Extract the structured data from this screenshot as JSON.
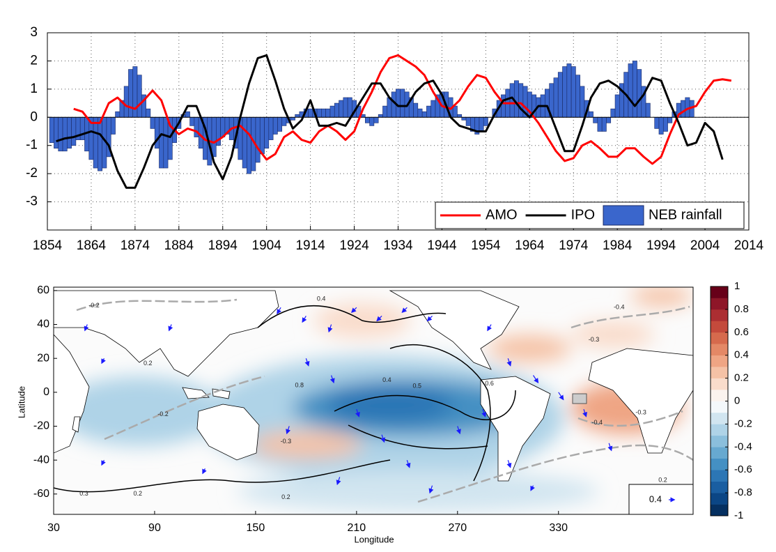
{
  "chart_data": [
    {
      "type": "line",
      "xlim": [
        1854,
        2014
      ],
      "ylim": [
        -4,
        3
      ],
      "xticks": [
        1854,
        1864,
        1874,
        1884,
        1894,
        1904,
        1914,
        1924,
        1934,
        1944,
        1954,
        1964,
        1974,
        1984,
        1994,
        2004,
        2014
      ],
      "yticks": [
        -3,
        -2,
        -1,
        0,
        1,
        2,
        3
      ],
      "grid": true,
      "legend": "lower right",
      "series": [
        {
          "name": "AMO",
          "color": "#ff0000",
          "mark": "line",
          "x": [
            1860,
            1862,
            1864,
            1866,
            1868,
            1870,
            1872,
            1874,
            1876,
            1878,
            1880,
            1882,
            1884,
            1886,
            1888,
            1890,
            1892,
            1894,
            1896,
            1898,
            1900,
            1902,
            1904,
            1906,
            1908,
            1910,
            1912,
            1914,
            1916,
            1918,
            1920,
            1922,
            1924,
            1926,
            1928,
            1930,
            1932,
            1934,
            1936,
            1938,
            1940,
            1942,
            1944,
            1946,
            1948,
            1950,
            1952,
            1954,
            1956,
            1958,
            1960,
            1962,
            1964,
            1966,
            1968,
            1970,
            1972,
            1974,
            1976,
            1978,
            1980,
            1982,
            1984,
            1986,
            1988,
            1990,
            1992,
            1994,
            1996,
            1998,
            2000,
            2002,
            2004,
            2006,
            2008,
            2010
          ],
          "values": [
            0.3,
            0.2,
            -0.2,
            -0.2,
            0.5,
            0.7,
            0.4,
            0.3,
            0.6,
            0.95,
            0.6,
            -0.3,
            -0.6,
            -0.4,
            -0.5,
            -0.8,
            -0.9,
            -0.7,
            -0.4,
            -0.3,
            -0.6,
            -1.1,
            -1.5,
            -1.3,
            -0.7,
            -0.5,
            -0.8,
            -0.9,
            -0.5,
            -0.3,
            -0.5,
            -0.8,
            -0.5,
            0.3,
            0.9,
            1.6,
            2.1,
            2.2,
            2.0,
            1.8,
            1.5,
            0.9,
            0.4,
            0.3,
            0.6,
            1.1,
            1.5,
            1.4,
            0.9,
            0.5,
            0.5,
            0.5,
            0.2,
            -0.2,
            -0.7,
            -1.2,
            -1.55,
            -1.45,
            -1.0,
            -0.85,
            -1.1,
            -1.4,
            -1.4,
            -1.1,
            -1.1,
            -1.4,
            -1.65,
            -1.4,
            -0.6,
            0.1,
            0.3,
            0.4,
            0.9,
            1.3,
            1.35,
            1.3
          ]
        },
        {
          "name": "IPO",
          "color": "#000000",
          "mark": "line",
          "x": [
            1856,
            1858,
            1860,
            1862,
            1864,
            1866,
            1868,
            1870,
            1872,
            1874,
            1876,
            1878,
            1880,
            1882,
            1884,
            1886,
            1888,
            1890,
            1892,
            1894,
            1896,
            1898,
            1900,
            1902,
            1904,
            1906,
            1908,
            1910,
            1912,
            1914,
            1916,
            1918,
            1920,
            1922,
            1924,
            1926,
            1928,
            1930,
            1932,
            1934,
            1936,
            1938,
            1940,
            1942,
            1944,
            1946,
            1948,
            1950,
            1952,
            1954,
            1956,
            1958,
            1960,
            1962,
            1964,
            1966,
            1968,
            1970,
            1972,
            1974,
            1976,
            1978,
            1980,
            1982,
            1984,
            1986,
            1988,
            1990,
            1992,
            1994,
            1996,
            1998,
            2000,
            2002,
            2004,
            2006,
            2008
          ],
          "values": [
            -0.85,
            -0.75,
            -0.7,
            -0.6,
            -0.5,
            -0.6,
            -1.0,
            -1.9,
            -2.5,
            -2.5,
            -1.8,
            -1.0,
            -0.6,
            -0.7,
            -0.2,
            0.4,
            0.4,
            -0.4,
            -1.6,
            -2.2,
            -1.4,
            0.0,
            1.2,
            2.1,
            2.2,
            1.3,
            0.3,
            -0.4,
            -0.1,
            0.6,
            -0.3,
            -0.3,
            -0.2,
            -0.3,
            0.2,
            0.7,
            1.2,
            1.2,
            0.7,
            0.4,
            0.4,
            0.9,
            1.2,
            1.3,
            0.8,
            0.0,
            -0.3,
            -0.4,
            -0.5,
            -0.5,
            0.1,
            0.6,
            0.7,
            0.3,
            0.0,
            0.4,
            0.4,
            -0.4,
            -1.2,
            -1.2,
            -0.3,
            0.7,
            1.2,
            1.3,
            1.1,
            0.8,
            0.4,
            0.8,
            1.4,
            1.3,
            0.5,
            -0.2,
            -1.0,
            -0.9,
            -0.2,
            -0.5,
            -1.5
          ]
        },
        {
          "name": "NEB rainfall",
          "color": "#3a66cc",
          "mark": "bar",
          "x": [
            1855,
            1856,
            1857,
            1858,
            1859,
            1860,
            1861,
            1862,
            1863,
            1864,
            1865,
            1866,
            1867,
            1868,
            1869,
            1870,
            1871,
            1872,
            1873,
            1874,
            1875,
            1876,
            1877,
            1878,
            1879,
            1880,
            1881,
            1882,
            1883,
            1884,
            1885,
            1886,
            1887,
            1888,
            1889,
            1890,
            1891,
            1892,
            1893,
            1894,
            1895,
            1896,
            1897,
            1898,
            1899,
            1900,
            1901,
            1902,
            1903,
            1904,
            1905,
            1906,
            1907,
            1908,
            1909,
            1910,
            1911,
            1912,
            1913,
            1914,
            1915,
            1916,
            1917,
            1918,
            1919,
            1920,
            1921,
            1922,
            1923,
            1924,
            1925,
            1926,
            1927,
            1928,
            1929,
            1930,
            1931,
            1932,
            1933,
            1934,
            1935,
            1936,
            1937,
            1938,
            1939,
            1940,
            1941,
            1942,
            1943,
            1944,
            1945,
            1946,
            1947,
            1948,
            1949,
            1950,
            1951,
            1952,
            1953,
            1954,
            1955,
            1956,
            1957,
            1958,
            1959,
            1960,
            1961,
            1962,
            1963,
            1964,
            1965,
            1966,
            1967,
            1968,
            1969,
            1970,
            1971,
            1972,
            1973,
            1974,
            1975,
            1976,
            1977,
            1978,
            1979,
            1980,
            1981,
            1982,
            1983,
            1984,
            1985,
            1986,
            1987,
            1988,
            1989,
            1990,
            1991,
            1992,
            1993,
            1994,
            1995,
            1996,
            1997,
            1998,
            1999,
            2000,
            2001
          ],
          "values": [
            -0.9,
            -1.1,
            -1.2,
            -1.2,
            -1.1,
            -1.0,
            -0.8,
            -0.8,
            -1.2,
            -1.5,
            -1.8,
            -1.9,
            -1.8,
            -1.4,
            -0.6,
            0.2,
            0.6,
            1.1,
            1.7,
            1.8,
            1.5,
            0.8,
            0.3,
            -0.4,
            -1.1,
            -1.8,
            -1.8,
            -1.5,
            -0.9,
            -0.4,
            0.1,
            0.2,
            -0.3,
            -0.7,
            -1.1,
            -1.5,
            -1.7,
            -1.4,
            -1.0,
            -0.7,
            -0.6,
            -0.8,
            -1.1,
            -1.5,
            -1.8,
            -2.0,
            -1.9,
            -1.6,
            -1.3,
            -1.1,
            -0.8,
            -0.6,
            -0.5,
            -0.3,
            -0.2,
            -0.1,
            0.1,
            0.2,
            0.3,
            0.3,
            0.3,
            0.3,
            0.3,
            0.3,
            0.4,
            0.5,
            0.6,
            0.7,
            0.7,
            0.6,
            0.4,
            0.1,
            -0.2,
            -0.3,
            -0.2,
            0.1,
            0.4,
            0.7,
            0.9,
            1.0,
            1.0,
            0.9,
            0.7,
            0.5,
            0.3,
            0.2,
            0.4,
            0.6,
            0.8,
            0.9,
            0.9,
            0.7,
            0.4,
            0.1,
            -0.1,
            -0.3,
            -0.5,
            -0.6,
            -0.5,
            -0.3,
            0.0,
            0.3,
            0.6,
            0.8,
            1.0,
            1.2,
            1.3,
            1.2,
            1.1,
            0.9,
            0.8,
            0.7,
            0.8,
            1.0,
            1.2,
            1.4,
            1.6,
            1.8,
            1.9,
            1.8,
            1.5,
            1.1,
            0.6,
            0.2,
            -0.2,
            -0.5,
            -0.5,
            -0.2,
            0.3,
            0.8,
            1.2,
            1.6,
            1.9,
            2.0,
            1.7,
            1.1,
            0.5,
            0.0,
            -0.4,
            -0.6,
            -0.5,
            -0.2,
            0.2,
            0.5,
            0.6,
            0.7,
            0.6
          ]
        }
      ]
    },
    {
      "type": "map",
      "xlabel": "Longitude",
      "ylabel": "Latitude",
      "xlim": [
        30,
        410
      ],
      "ylim": [
        -72,
        62
      ],
      "xticks": [
        30,
        90,
        150,
        210,
        270,
        330
      ],
      "yticks": [
        -60,
        -40,
        -20,
        0,
        20,
        40,
        60
      ],
      "vector_color": "#1a1aff",
      "colorbar": {
        "lim": [
          -1,
          1
        ],
        "ticks": [
          -1,
          -0.8,
          -0.6,
          -0.4,
          -0.2,
          0,
          0.2,
          0.4,
          0.6,
          0.8,
          1
        ],
        "colors": [
          "#053061",
          "#0b4685",
          "#1a5ea1",
          "#2c76b5",
          "#4490c3",
          "#67a9d0",
          "#8bbfdc",
          "#afd3e7",
          "#d1e5f0",
          "#f4f8fb",
          "#fbf3ee",
          "#f9dccb",
          "#f5c2a6",
          "#efa584",
          "#e48866",
          "#d66a4d",
          "#c44a3c",
          "#ac2e32",
          "#8e1628",
          "#670019"
        ]
      },
      "reference_vector": 0.4,
      "annotations": [
        {
          "text": "-0.2",
          "lon": 54,
          "lat": 51
        },
        {
          "text": "0.2",
          "lon": 86,
          "lat": 17
        },
        {
          "text": "0.4",
          "lon": 189,
          "lat": 55
        },
        {
          "text": "0.8",
          "lon": 176,
          "lat": 4
        },
        {
          "text": "0.4",
          "lon": 228,
          "lat": 7
        },
        {
          "text": "0.5",
          "lon": 246,
          "lat": 3.5
        },
        {
          "text": "0.6",
          "lon": 289,
          "lat": 5
        },
        {
          "text": "-0.2",
          "lon": 95,
          "lat": -13
        },
        {
          "text": "-0.3",
          "lon": 168,
          "lat": -29
        },
        {
          "text": "0.3",
          "lon": 48,
          "lat": -60
        },
        {
          "text": "0.2",
          "lon": 80,
          "lat": -60
        },
        {
          "text": "0.2",
          "lon": 168,
          "lat": -62
        },
        {
          "text": "-0.4",
          "lon": 353,
          "lat": -18
        },
        {
          "text": "-0.3",
          "lon": 379,
          "lat": -12
        },
        {
          "text": "-0.4",
          "lon": 366,
          "lat": 50
        },
        {
          "text": "-0.3",
          "lon": 351,
          "lat": 31
        },
        {
          "text": "0.2",
          "lon": 392,
          "lat": -52
        }
      ],
      "vectors": [
        [
          50,
          40,
          -0.1,
          -0.25
        ],
        [
          60,
          20,
          -0.1,
          -0.2
        ],
        [
          60,
          -40,
          -0.1,
          -0.2
        ],
        [
          120,
          -45,
          -0.1,
          -0.2
        ],
        [
          165,
          50,
          -0.15,
          -0.25
        ],
        [
          180,
          45,
          -0.15,
          -0.25
        ],
        [
          195,
          40,
          -0.1,
          -0.3
        ],
        [
          210,
          50,
          -0.2,
          -0.2
        ],
        [
          225,
          45,
          -0.2,
          -0.2
        ],
        [
          240,
          50,
          -0.2,
          -0.2
        ],
        [
          255,
          45,
          -0.2,
          -0.2
        ],
        [
          180,
          20,
          0.1,
          -0.3
        ],
        [
          195,
          10,
          0.1,
          -0.3
        ],
        [
          210,
          -10,
          0.1,
          -0.3
        ],
        [
          225,
          -25,
          0.1,
          -0.3
        ],
        [
          240,
          -40,
          0.1,
          -0.3
        ],
        [
          255,
          -55,
          -0.1,
          -0.3
        ],
        [
          270,
          -20,
          0.1,
          -0.3
        ],
        [
          285,
          -10,
          0.1,
          -0.3
        ],
        [
          300,
          20,
          0.1,
          -0.3
        ],
        [
          315,
          10,
          0.2,
          -0.3
        ],
        [
          330,
          0,
          0.2,
          -0.3
        ],
        [
          345,
          -10,
          0.1,
          -0.3
        ],
        [
          360,
          -30,
          0.1,
          -0.3
        ],
        [
          300,
          -40,
          0.1,
          -0.3
        ],
        [
          315,
          -55,
          -0.1,
          -0.2
        ],
        [
          290,
          40,
          -0.15,
          -0.25
        ],
        [
          170,
          -20,
          -0.1,
          -0.3
        ],
        [
          200,
          -50,
          -0.1,
          -0.3
        ],
        [
          100,
          40,
          -0.1,
          -0.25
        ]
      ]
    }
  ]
}
